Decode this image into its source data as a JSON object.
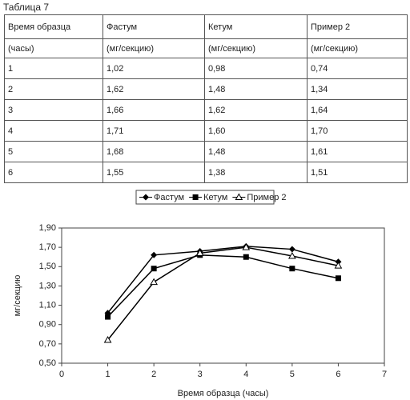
{
  "caption": "Таблица 7",
  "table": {
    "header": [
      "Время образца",
      "Фастум",
      "Кетум",
      "Пример 2"
    ],
    "units": [
      "(часы)",
      "(мг/секцию)",
      "(мг/секцию)",
      "(мг/секцию)"
    ],
    "rows": [
      [
        "1",
        "1,02",
        "0,98",
        "0,74"
      ],
      [
        "2",
        "1,62",
        "1,48",
        "1,34"
      ],
      [
        "3",
        "1,66",
        "1,62",
        "1,64"
      ],
      [
        "4",
        "1,71",
        "1,60",
        "1,70"
      ],
      [
        "5",
        "1,68",
        "1,48",
        "1,61"
      ],
      [
        "6",
        "1,55",
        "1,38",
        "1,51"
      ]
    ]
  },
  "chart_data": {
    "type": "line",
    "xlabel": "Время образца (часы)",
    "ylabel": "мг/секцию",
    "x": [
      1,
      2,
      3,
      4,
      5,
      6
    ],
    "series": [
      {
        "name": "Фастум",
        "color": "#000000",
        "marker": "diamond",
        "values": [
          1.02,
          1.62,
          1.66,
          1.71,
          1.68,
          1.55
        ]
      },
      {
        "name": "Кетум",
        "color": "#000000",
        "marker": "square",
        "values": [
          0.98,
          1.48,
          1.62,
          1.6,
          1.48,
          1.38
        ]
      },
      {
        "name": "Пример 2",
        "color": "#000000",
        "marker": "triangle",
        "values": [
          0.74,
          1.34,
          1.64,
          1.7,
          1.61,
          1.51
        ]
      }
    ],
    "xlim": [
      0,
      7
    ],
    "xticks": [
      0,
      1,
      2,
      3,
      4,
      5,
      6,
      7
    ],
    "ylim": [
      0.5,
      1.9
    ],
    "yticks": [
      {
        "value": 0.5,
        "label": "0,50"
      },
      {
        "value": 0.7,
        "label": "0,70"
      },
      {
        "value": 0.9,
        "label": "0,90"
      },
      {
        "value": 1.1,
        "label": "1,10"
      },
      {
        "value": 1.3,
        "label": "1,30"
      },
      {
        "value": 1.5,
        "label": "1,50"
      },
      {
        "value": 1.7,
        "label": "1,70"
      },
      {
        "value": 1.9,
        "label": "1,90"
      }
    ],
    "legend": "top"
  }
}
